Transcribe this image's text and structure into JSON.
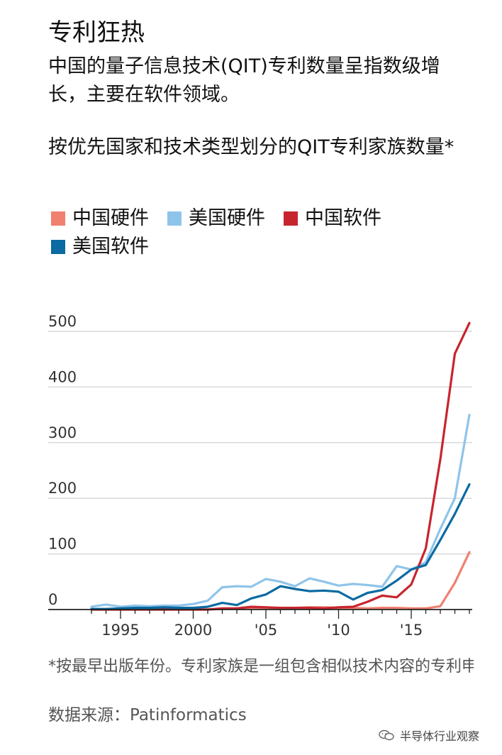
{
  "title": "专利狂热",
  "subtitle": "中国的量子信息技术(QIT)专利数量呈指数级增长，主要在软件领域。",
  "chart_data": {
    "type": "line",
    "title": "按优先国家和技术类型划分的QIT专利家族数量*",
    "xlim": [
      1993,
      2019
    ],
    "ylim": [
      0,
      500
    ],
    "yticks": [
      0,
      100,
      200,
      300,
      400,
      500
    ],
    "ytick_labels": [
      "0",
      "100",
      "200",
      "300",
      "400",
      "500"
    ],
    "xticks": [
      1995,
      2000,
      2005,
      2010,
      2015
    ],
    "xtick_labels": [
      "1995",
      "2000",
      "'05",
      "'10",
      "'15"
    ],
    "grid": true,
    "legend_position": "top",
    "x": [
      1993,
      1994,
      1995,
      1996,
      1997,
      1998,
      1999,
      2000,
      2001,
      2002,
      2003,
      2004,
      2005,
      2006,
      2007,
      2008,
      2009,
      2010,
      2011,
      2012,
      2013,
      2014,
      2015,
      2016,
      2017,
      2018,
      2019
    ],
    "series": [
      {
        "name": "中国硬件",
        "color": "#f08070",
        "values": [
          0,
          0,
          0,
          0,
          0,
          0,
          0,
          0,
          0,
          1,
          2,
          2,
          3,
          3,
          3,
          4,
          4,
          3,
          3,
          2,
          3,
          3,
          2,
          2,
          6,
          48,
          103
        ]
      },
      {
        "name": "美国硬件",
        "color": "#8fc4ea",
        "values": [
          5,
          9,
          5,
          7,
          6,
          7,
          7,
          10,
          16,
          40,
          42,
          41,
          55,
          50,
          42,
          56,
          50,
          43,
          46,
          44,
          41,
          78,
          72,
          85,
          145,
          200,
          350
        ]
      },
      {
        "name": "中国软件",
        "color": "#c7252e",
        "values": [
          0,
          0,
          0,
          0,
          0,
          0,
          0,
          0,
          0,
          2,
          2,
          5,
          4,
          3,
          3,
          3,
          2,
          4,
          5,
          14,
          25,
          22,
          45,
          110,
          270,
          460,
          515
        ]
      },
      {
        "name": "美国软件",
        "color": "#0a6aa1",
        "values": [
          1,
          1,
          2,
          3,
          3,
          4,
          3,
          3,
          5,
          12,
          8,
          20,
          27,
          42,
          37,
          33,
          34,
          32,
          18,
          30,
          35,
          52,
          72,
          80,
          125,
          172,
          225
        ]
      }
    ]
  },
  "footnote": "*按最早出版年份。专利家族是一组包含相似技术内容的专利申请。",
  "source": "数据来源：Patinformatics",
  "watermark": "半导体行业观察"
}
